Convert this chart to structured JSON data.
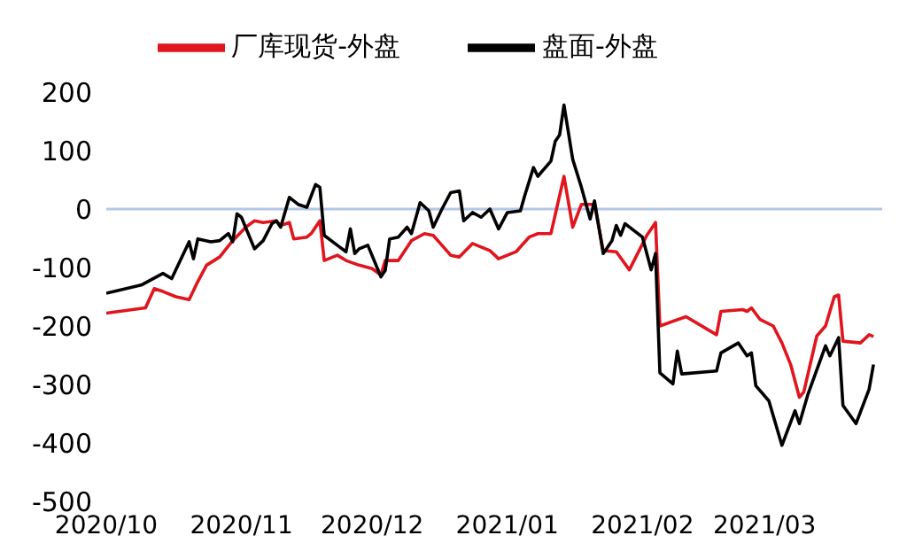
{
  "chart_data": {
    "type": "line",
    "legend": "top",
    "grid": false,
    "marker": "none",
    "line_style": "solid",
    "xlim": [
      "2020-10-01",
      "2021-03-28"
    ],
    "xticks": [
      {
        "value": "2020-10-01",
        "label": "2020/10"
      },
      {
        "value": "2020-11-01",
        "label": "2020/11"
      },
      {
        "value": "2020-12-01",
        "label": "2020/12"
      },
      {
        "value": "2021-01-01",
        "label": "2021/01"
      },
      {
        "value": "2021-02-01",
        "label": "2021/02"
      },
      {
        "value": "2021-03-01",
        "label": "2021/03"
      }
    ],
    "ylim": [
      -500,
      200
    ],
    "yticks": [
      -500,
      -400,
      -300,
      -200,
      -100,
      0,
      100,
      200
    ],
    "ref_lines": [
      {
        "axis": "y",
        "value": 0,
        "color": "#b4c7e7"
      }
    ],
    "series": [
      {
        "name": "厂库现货-外盘",
        "color": "#e0151d",
        "x": [
          "2020-10-01",
          "2020-10-10",
          "2020-10-12",
          "2020-10-14",
          "2020-10-17",
          "2020-10-20",
          "2020-10-22",
          "2020-10-24",
          "2020-10-27",
          "2020-10-30",
          "2020-11-02",
          "2020-11-04",
          "2020-11-06",
          "2020-11-09",
          "2020-11-10",
          "2020-11-12",
          "2020-11-13",
          "2020-11-16",
          "2020-11-17",
          "2020-11-19",
          "2020-11-20",
          "2020-11-23",
          "2020-11-25",
          "2020-11-28",
          "2020-12-01",
          "2020-12-03",
          "2020-12-04",
          "2020-12-07",
          "2020-12-10",
          "2020-12-13",
          "2020-12-15",
          "2020-12-17",
          "2020-12-19",
          "2020-12-21",
          "2020-12-24",
          "2020-12-28",
          "2020-12-30",
          "2021-01-03",
          "2021-01-06",
          "2021-01-08",
          "2021-01-11",
          "2021-01-14",
          "2021-01-16",
          "2021-01-18",
          "2021-01-21",
          "2021-01-23",
          "2021-01-26",
          "2021-01-29",
          "2021-02-02",
          "2021-02-04",
          "2021-02-05",
          "2021-02-11",
          "2021-02-18",
          "2021-02-19",
          "2021-02-24",
          "2021-02-25",
          "2021-02-26",
          "2021-02-28",
          "2021-03-03",
          "2021-03-05",
          "2021-03-07",
          "2021-03-09",
          "2021-03-10",
          "2021-03-13",
          "2021-03-15",
          "2021-03-17",
          "2021-03-18",
          "2021-03-19",
          "2021-03-23",
          "2021-03-25",
          "2021-03-26"
        ],
        "values": [
          -178,
          -169,
          -136,
          -141,
          -150,
          -155,
          -124,
          -96,
          -82,
          -54,
          -31,
          -20,
          -23,
          -20,
          -28,
          -23,
          -51,
          -48,
          -42,
          -20,
          -88,
          -79,
          -88,
          -96,
          -102,
          -113,
          -88,
          -88,
          -54,
          -42,
          -45,
          -62,
          -79,
          -82,
          -59,
          -71,
          -85,
          -73,
          -48,
          -42,
          -42,
          56,
          -31,
          8,
          8,
          -71,
          -73,
          -104,
          -45,
          -23,
          -200,
          -184,
          -215,
          -175,
          -172,
          -175,
          -169,
          -189,
          -200,
          -229,
          -266,
          -322,
          -313,
          -217,
          -200,
          -150,
          -147,
          -226,
          -229,
          -215,
          -218
        ]
      },
      {
        "name": "盘面-外盘",
        "color": "#000000",
        "x": [
          "2020-10-01",
          "2020-10-09",
          "2020-10-14",
          "2020-10-16",
          "2020-10-20",
          "2020-10-21",
          "2020-10-22",
          "2020-10-25",
          "2020-10-27",
          "2020-10-29",
          "2020-10-30",
          "2020-10-31",
          "2020-11-01",
          "2020-11-04",
          "2020-11-06",
          "2020-11-08",
          "2020-11-09",
          "2020-11-10",
          "2020-11-12",
          "2020-11-14",
          "2020-11-16",
          "2020-11-18",
          "2020-11-19",
          "2020-11-20",
          "2020-11-23",
          "2020-11-25",
          "2020-11-26",
          "2020-11-27",
          "2020-11-28",
          "2020-11-30",
          "2020-12-03",
          "2020-12-04",
          "2020-12-05",
          "2020-12-07",
          "2020-12-09",
          "2020-12-10",
          "2020-12-12",
          "2020-12-14",
          "2020-12-15",
          "2020-12-17",
          "2020-12-19",
          "2020-12-21",
          "2020-12-22",
          "2020-12-24",
          "2020-12-26",
          "2020-12-28",
          "2020-12-30",
          "2021-01-01",
          "2021-01-04",
          "2021-01-05",
          "2021-01-07",
          "2021-01-08",
          "2021-01-11",
          "2021-01-12",
          "2021-01-13",
          "2021-01-14",
          "2021-01-16",
          "2021-01-18",
          "2021-01-20",
          "2021-01-21",
          "2021-01-23",
          "2021-01-25",
          "2021-01-26",
          "2021-01-27",
          "2021-01-28",
          "2021-02-01",
          "2021-02-03",
          "2021-02-04",
          "2021-02-05",
          "2021-02-08",
          "2021-02-09",
          "2021-02-10",
          "2021-02-18",
          "2021-02-19",
          "2021-02-23",
          "2021-02-25",
          "2021-02-26",
          "2021-02-27",
          "2021-03-02",
          "2021-03-05",
          "2021-03-08",
          "2021-03-09",
          "2021-03-11",
          "2021-03-15",
          "2021-03-16",
          "2021-03-18",
          "2021-03-19",
          "2021-03-22",
          "2021-03-25",
          "2021-03-26"
        ],
        "values": [
          -144,
          -130,
          -110,
          -119,
          -56,
          -85,
          -51,
          -56,
          -54,
          -42,
          -56,
          -8,
          -14,
          -68,
          -54,
          -25,
          -20,
          -31,
          20,
          8,
          3,
          42,
          37,
          -45,
          -62,
          -73,
          -34,
          -76,
          -68,
          -62,
          -116,
          -105,
          -51,
          -48,
          -31,
          -42,
          11,
          -3,
          -31,
          0,
          28,
          31,
          -20,
          -6,
          -14,
          0,
          -34,
          -6,
          -3,
          23,
          71,
          56,
          82,
          116,
          127,
          178,
          85,
          37,
          -17,
          14,
          -76,
          -54,
          -28,
          -45,
          -25,
          -48,
          -104,
          -76,
          -280,
          -299,
          -243,
          -282,
          -277,
          -246,
          -229,
          -251,
          -246,
          -302,
          -328,
          -404,
          -345,
          -367,
          -316,
          -234,
          -251,
          -220,
          -336,
          -367,
          -308,
          -266
        ]
      }
    ]
  }
}
